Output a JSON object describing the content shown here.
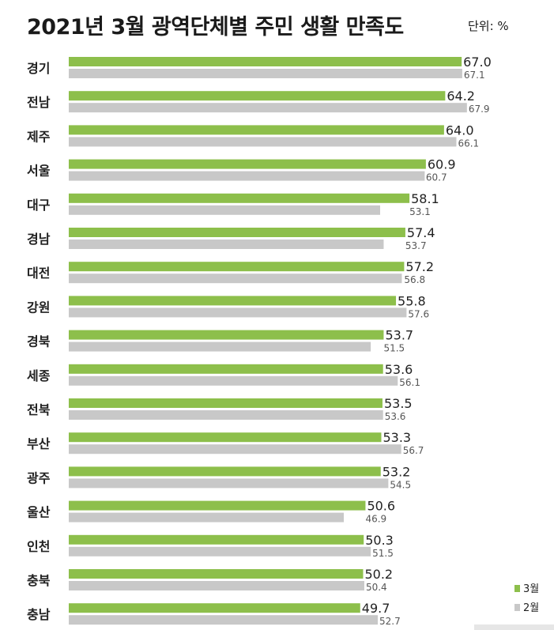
{
  "title": "2021년 3월 광역단체별 주민 생활 만족도",
  "unit": "단위: %",
  "colors": {
    "march": "#8dbf4b",
    "feb": "#c8c8c8"
  },
  "chart_data": {
    "type": "bar",
    "orientation": "horizontal",
    "title": "2021년 3월 광역단체별 주민 생활 만족도",
    "unit": "단위: %",
    "legend_position": "bottom-right",
    "categories": [
      "경기",
      "전남",
      "제주",
      "서울",
      "대구",
      "경남",
      "대전",
      "강원",
      "경북",
      "세종",
      "전북",
      "부산",
      "광주",
      "울산",
      "인천",
      "충북",
      "충남"
    ],
    "series": [
      {
        "name": "3월",
        "color": "#8dbf4b",
        "values": [
          67.0,
          64.2,
          64.0,
          60.9,
          58.1,
          57.4,
          57.2,
          55.8,
          53.7,
          53.6,
          53.5,
          53.3,
          53.2,
          50.6,
          50.3,
          50.2,
          49.7
        ],
        "labels": [
          "67.0",
          "64.2",
          "64.0",
          "60.9",
          "58.1",
          "57.4",
          "57.2",
          "55.8",
          "53.7",
          "53.6",
          "53.5",
          "53.3",
          "53.2",
          "50.6",
          "50.3",
          "50.2",
          "49.7"
        ]
      },
      {
        "name": "2월",
        "color": "#c8c8c8",
        "values": [
          67.1,
          67.9,
          66.1,
          60.7,
          53.1,
          53.7,
          56.8,
          57.6,
          51.5,
          56.1,
          53.6,
          56.7,
          54.5,
          46.9,
          51.5,
          50.4,
          52.7
        ],
        "labels": [
          "67.1",
          "67.9",
          "66.1",
          "60.7",
          "53.1",
          "53.7",
          "56.8",
          "57.6",
          "51.5",
          "56.1",
          "53.6",
          "56.7",
          "54.5",
          "46.9",
          "51.5",
          "50.4",
          "52.7"
        ]
      }
    ]
  }
}
